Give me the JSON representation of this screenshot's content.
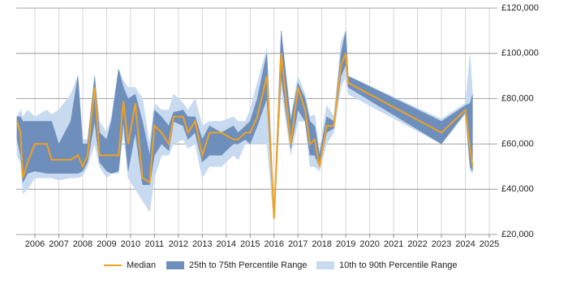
{
  "chart_data": {
    "type": "band-line",
    "x": [
      2005.25,
      2005.4,
      2005.5,
      2005.7,
      2006.0,
      2006.5,
      2006.7,
      2007.0,
      2007.5,
      2007.8,
      2008.0,
      2008.2,
      2008.5,
      2008.7,
      2009.0,
      2009.2,
      2009.5,
      2009.7,
      2009.9,
      2010.2,
      2010.5,
      2010.8,
      2011.0,
      2011.3,
      2011.6,
      2011.8,
      2012.2,
      2012.4,
      2012.7,
      2013.0,
      2013.3,
      2013.8,
      2014.3,
      2014.5,
      2014.8,
      2015.0,
      2015.3,
      2015.7,
      2016.0,
      2016.3,
      2016.7,
      2017.0,
      2017.3,
      2017.5,
      2017.7,
      2017.9,
      2018.2,
      2018.5,
      2018.8,
      2019.0,
      2019.1,
      2023.0,
      2024.0,
      2024.2,
      2024.3
    ],
    "series": [
      {
        "name": "Median",
        "color": "#f0a020",
        "values": [
          70000,
          65000,
          45000,
          52000,
          60000,
          60000,
          53000,
          53000,
          53000,
          55000,
          50000,
          55000,
          85000,
          55000,
          55000,
          55000,
          55000,
          79000,
          60000,
          78000,
          45000,
          43000,
          68000,
          65000,
          60000,
          72000,
          72000,
          65000,
          70000,
          55000,
          65000,
          65000,
          62000,
          62000,
          65000,
          65000,
          72000,
          90000,
          27000,
          100000,
          60000,
          85000,
          75000,
          60000,
          62000,
          50000,
          68000,
          68000,
          95000,
          100000,
          87000,
          65000,
          75000,
          58000,
          50000
        ]
      },
      {
        "name": "25th to 75th Percentile Range",
        "color": "#6e8fbc",
        "low": [
          62000,
          55000,
          43000,
          47000,
          48000,
          47000,
          47000,
          47000,
          47000,
          47000,
          48000,
          52000,
          70000,
          52000,
          48000,
          47000,
          48000,
          70000,
          48000,
          65000,
          42000,
          42000,
          55000,
          60000,
          57000,
          70000,
          68000,
          62000,
          65000,
          52000,
          55000,
          55000,
          60000,
          60000,
          62000,
          60000,
          68000,
          80000,
          27000,
          90000,
          58000,
          75000,
          70000,
          55000,
          55000,
          50000,
          65000,
          67000,
          90000,
          95000,
          85000,
          60000,
          74000,
          50000,
          48000
        ],
        "high": [
          72000,
          72000,
          70000,
          70000,
          70000,
          70000,
          70000,
          60000,
          70000,
          90000,
          60000,
          60000,
          90000,
          65000,
          62000,
          70000,
          93000,
          85000,
          80000,
          82000,
          70000,
          55000,
          75000,
          72000,
          68000,
          74000,
          75000,
          72000,
          72000,
          62000,
          68000,
          65000,
          68000,
          65000,
          68000,
          70000,
          80000,
          100000,
          30000,
          110000,
          70000,
          87000,
          80000,
          70000,
          68000,
          55000,
          72000,
          70000,
          100000,
          110000,
          90000,
          70000,
          77000,
          78000,
          82000
        ]
      },
      {
        "name": "10th to 90th Percentile Range",
        "color": "#c7daf0",
        "low": [
          55000,
          52000,
          38000,
          40000,
          45000,
          45000,
          45000,
          44000,
          45000,
          45000,
          46000,
          50000,
          60000,
          50000,
          45000,
          47000,
          47000,
          65000,
          45000,
          40000,
          35000,
          30000,
          45000,
          55000,
          55000,
          60000,
          62000,
          58000,
          60000,
          45000,
          50000,
          50000,
          55000,
          53000,
          60000,
          60000,
          60000,
          60000,
          25000,
          85000,
          55000,
          70000,
          70000,
          50000,
          50000,
          48000,
          60000,
          65000,
          85000,
          90000,
          82000,
          60000,
          73000,
          48000,
          47000
        ],
        "high": [
          72000,
          75000,
          72000,
          75000,
          72000,
          75000,
          73000,
          75000,
          82000,
          90000,
          62000,
          62000,
          90000,
          70000,
          65000,
          72000,
          93000,
          88000,
          85000,
          85000,
          80000,
          60000,
          78000,
          75000,
          75000,
          82000,
          78000,
          75000,
          80000,
          68000,
          70000,
          70000,
          72000,
          70000,
          70000,
          75000,
          87000,
          102000,
          32000,
          110000,
          72000,
          90000,
          82000,
          72000,
          73000,
          57000,
          77000,
          72000,
          105000,
          110000,
          90000,
          71000,
          78000,
          100000,
          82000
        ]
      }
    ],
    "xlim": [
      2005.22,
      2025.34
    ],
    "xticks": [
      2006,
      2007,
      2008,
      2009,
      2010,
      2011,
      2012,
      2013,
      2014,
      2015,
      2016,
      2017,
      2018,
      2019,
      2020,
      2021,
      2022,
      2023,
      2024,
      2025
    ],
    "ylim": [
      20000,
      120000
    ],
    "yticks": [
      {
        "value": 20000,
        "label": "£20,000"
      },
      {
        "value": 40000,
        "label": "£40,000"
      },
      {
        "value": 60000,
        "label": "£60,000"
      },
      {
        "value": 80000,
        "label": "£80,000"
      },
      {
        "value": 100000,
        "label": "£100,000"
      },
      {
        "value": 120000,
        "label": "£120,000"
      }
    ],
    "grid": true,
    "legend": "bottom"
  }
}
